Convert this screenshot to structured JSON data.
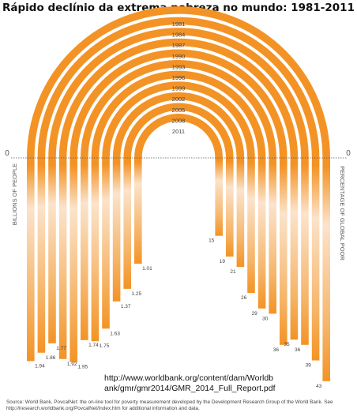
{
  "title": "Rápido declínio da extrema pobreza no mundo: 1981-2011",
  "url_note": {
    "line1": "http://www.worldbank.org/content/dam/Worldb",
    "line2": "ank/gmr/gmr2014/GMR_2014_Full_Report.pdf"
  },
  "source": "Source: World Bank, PovcalNet: the on-line tool for poverty measurement developed by the Development Research Group of the World Bank. See http://iresearch.worldbank.org/PovcalNet/index.htm for additional information and data.",
  "colors": {
    "arc": "#f39325",
    "fade_light": "#f9dcc0",
    "divider": "#555555"
  },
  "chart_data": {
    "type": "bar",
    "title": "Rápido declínio da extrema pobreza no mundo: 1981-2011",
    "categories": [
      "1981",
      "1984",
      "1987",
      "1990",
      "1993",
      "1996",
      "1999",
      "2002",
      "2005",
      "2008",
      "2011"
    ],
    "left_axis": {
      "label": "BILLIONS OF PEOPLE",
      "zero_label": "0"
    },
    "right_axis": {
      "label": "PERCENTAGE OF GLOBAL POOR",
      "zero_label": "0"
    },
    "series": [
      {
        "name": "BILLIONS OF PEOPLE",
        "values": [
          1.94,
          1.86,
          1.77,
          1.92,
          1.95,
          1.74,
          1.75,
          1.63,
          1.37,
          1.25,
          1.01
        ],
        "labels": [
          "1.94",
          "1.86",
          "1.77",
          "1.92",
          "1.95",
          "1.74",
          "1.75",
          "1.63",
          "1.37",
          "1.25",
          "1.01"
        ]
      },
      {
        "name": "PERCENTAGE OF GLOBAL POOR",
        "values": [
          43,
          39,
          36,
          35,
          36,
          30,
          29,
          26,
          21,
          19,
          15
        ],
        "labels": [
          "43",
          "39",
          "36",
          "35",
          "36",
          "30",
          "29",
          "26",
          "21",
          "19",
          "15"
        ]
      }
    ]
  }
}
